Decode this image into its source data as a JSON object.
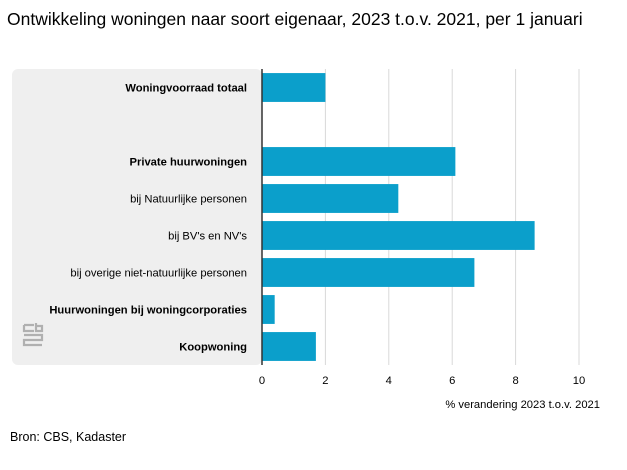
{
  "title": "Ontwikkeling woningen naar soort eigenaar, 2023 t.o.v. 2021, per 1 januari",
  "source": "Bron: CBS, Kadaster",
  "logo_text": "cbs",
  "colors": {
    "bar": "#0b9fcb",
    "panel": "#efefef",
    "grid": "#d9d9d9",
    "axis": "#333333"
  },
  "chart_data": {
    "type": "bar",
    "orientation": "horizontal",
    "categories": [
      "Woningvoorraad totaal",
      "",
      "Private huurwoningen",
      "bij Natuurlijke personen",
      "bij BV's en NV's",
      "bij overige niet-natuurlijke personen",
      "Huurwoningen bij woningcorporaties",
      "Koopwoning"
    ],
    "bold": [
      true,
      false,
      true,
      false,
      false,
      false,
      true,
      true
    ],
    "values": [
      2.0,
      null,
      6.1,
      4.3,
      8.6,
      6.7,
      0.4,
      1.7
    ],
    "xlabel": "% verandering 2023 t.o.v. 2021",
    "ylabel": "",
    "xlim": [
      0,
      10
    ],
    "xticks": [
      0,
      2,
      4,
      6,
      8,
      10
    ],
    "grid": true
  }
}
